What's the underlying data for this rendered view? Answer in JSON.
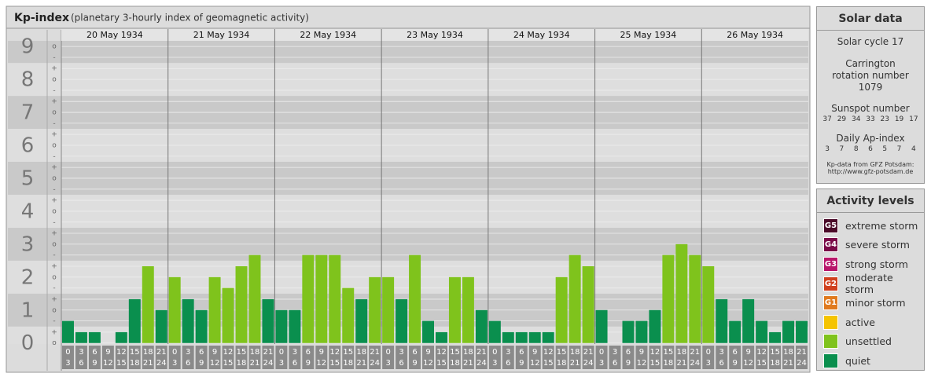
{
  "title": "Kp-index",
  "subtitle": "(planetary 3-hourly index of geomagnetic activity)",
  "chart_data": {
    "type": "bar",
    "ylim": [
      -0.03,
      9.17
    ],
    "yticks": [
      0,
      1,
      2,
      3,
      4,
      5,
      6,
      7,
      8,
      9
    ],
    "yticks_minor": [
      {
        "value": 9,
        "label": "o"
      },
      {
        "value": 8.67,
        "label": "-"
      },
      {
        "value": 8.33,
        "label": "+"
      },
      {
        "value": 8,
        "label": "o"
      },
      {
        "value": 7.67,
        "label": "-"
      },
      {
        "value": 7.33,
        "label": "+"
      },
      {
        "value": 7,
        "label": "o"
      },
      {
        "value": 6.67,
        "label": "-"
      },
      {
        "value": 6.33,
        "label": "+"
      },
      {
        "value": 6,
        "label": "o"
      },
      {
        "value": 5.67,
        "label": "-"
      },
      {
        "value": 5.33,
        "label": "+"
      },
      {
        "value": 5,
        "label": "o"
      },
      {
        "value": 4.67,
        "label": "-"
      },
      {
        "value": 4.33,
        "label": "+"
      },
      {
        "value": 4,
        "label": "o"
      },
      {
        "value": 3.67,
        "label": "-"
      },
      {
        "value": 3.33,
        "label": "+"
      },
      {
        "value": 3,
        "label": "o"
      },
      {
        "value": 2.67,
        "label": "-"
      },
      {
        "value": 2.33,
        "label": "+"
      },
      {
        "value": 2,
        "label": "o"
      },
      {
        "value": 1.67,
        "label": "-"
      },
      {
        "value": 1.33,
        "label": "+"
      },
      {
        "value": 1,
        "label": "o"
      },
      {
        "value": 0.67,
        "label": "-"
      },
      {
        "value": 0.33,
        "label": "+"
      },
      {
        "value": 0,
        "label": "o"
      }
    ],
    "hours": [
      [
        0,
        3
      ],
      [
        3,
        6
      ],
      [
        6,
        9
      ],
      [
        9,
        12
      ],
      [
        12,
        15
      ],
      [
        15,
        18
      ],
      [
        18,
        21
      ],
      [
        21,
        24
      ]
    ],
    "series": [
      {
        "name": "20 May 1934",
        "values": [
          0.67,
          0.33,
          0.33,
          0,
          0.33,
          1.33,
          2.33,
          1
        ],
        "colors": [
          "#0a8f4e",
          "#0a8f4e",
          "#0a8f4e",
          "#0a8f4e",
          "#0a8f4e",
          "#0a8f4e",
          "#7fc31c",
          "#0a8f4e"
        ]
      },
      {
        "name": "21 May 1934",
        "values": [
          2,
          1.33,
          1,
          2,
          1.67,
          2.33,
          2.67,
          1.33
        ],
        "colors": [
          "#7fc31c",
          "#0a8f4e",
          "#0a8f4e",
          "#7fc31c",
          "#7fc31c",
          "#7fc31c",
          "#7fc31c",
          "#0a8f4e"
        ]
      },
      {
        "name": "22 May 1934",
        "values": [
          1,
          1,
          2.67,
          2.67,
          2.67,
          1.67,
          1.33,
          2
        ],
        "colors": [
          "#0a8f4e",
          "#0a8f4e",
          "#7fc31c",
          "#7fc31c",
          "#7fc31c",
          "#7fc31c",
          "#0a8f4e",
          "#7fc31c"
        ]
      },
      {
        "name": "23 May 1934",
        "values": [
          2,
          1.33,
          2.67,
          0.67,
          0.33,
          2,
          2,
          1
        ],
        "colors": [
          "#7fc31c",
          "#0a8f4e",
          "#7fc31c",
          "#0a8f4e",
          "#0a8f4e",
          "#7fc31c",
          "#7fc31c",
          "#0a8f4e"
        ]
      },
      {
        "name": "24 May 1934",
        "values": [
          0.67,
          0.33,
          0.33,
          0.33,
          0.33,
          2,
          2.67,
          2.33
        ],
        "colors": [
          "#0a8f4e",
          "#0a8f4e",
          "#0a8f4e",
          "#0a8f4e",
          "#0a8f4e",
          "#7fc31c",
          "#7fc31c",
          "#7fc31c"
        ]
      },
      {
        "name": "25 May 1934",
        "values": [
          1,
          0,
          0.67,
          0.67,
          1,
          2.67,
          3,
          2.67
        ],
        "colors": [
          "#0a8f4e",
          "#0a8f4e",
          "#0a8f4e",
          "#0a8f4e",
          "#0a8f4e",
          "#7fc31c",
          "#7fc31c",
          "#7fc31c"
        ]
      },
      {
        "name": "26 May 1934",
        "values": [
          2.33,
          1.33,
          0.67,
          1.33,
          0.67,
          0.33,
          0.67,
          0.67
        ],
        "colors": [
          "#7fc31c",
          "#0a8f4e",
          "#0a8f4e",
          "#0a8f4e",
          "#0a8f4e",
          "#0a8f4e",
          "#0a8f4e",
          "#0a8f4e"
        ]
      }
    ]
  },
  "solar_data": {
    "title": "Solar data",
    "solar_cycle": "Solar cycle 17",
    "carrington": "Carrington rotation number 1079",
    "sunspot_title": "Sunspot number",
    "sunspots": [
      37,
      29,
      34,
      33,
      23,
      19,
      17
    ],
    "ap_title": "Daily Ap-index",
    "ap": [
      3,
      7,
      8,
      6,
      5,
      7,
      4
    ],
    "source": "Kp-data from GFZ Potsdam:",
    "source_url": "http://www.gfz-potsdam.de"
  },
  "activity_levels": {
    "title": "Activity levels",
    "items": [
      {
        "badge": "G5",
        "label": "extreme storm",
        "color": "#4a0a28"
      },
      {
        "badge": "G4",
        "label": "severe storm",
        "color": "#7a0a48"
      },
      {
        "badge": "G3",
        "label": "strong storm",
        "color": "#b8156a"
      },
      {
        "badge": "G2",
        "label": "moderate storm",
        "color": "#d0401e"
      },
      {
        "badge": "G1",
        "label": "minor storm",
        "color": "#e07a1e"
      },
      {
        "label": "active",
        "color": "#f5c400"
      },
      {
        "label": "unsettled",
        "color": "#7fc31c"
      },
      {
        "label": "quiet",
        "color": "#0a8f4e"
      }
    ]
  }
}
